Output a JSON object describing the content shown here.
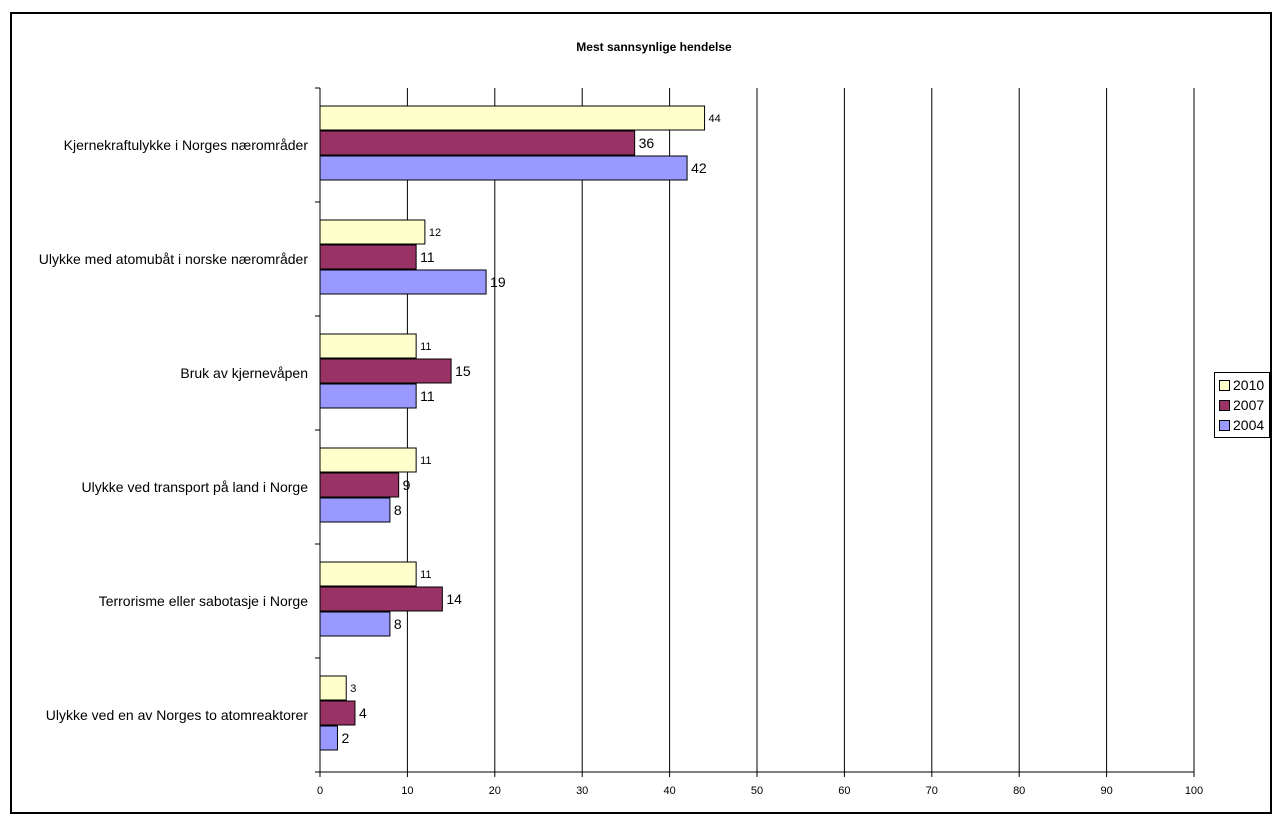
{
  "chart_data": {
    "type": "bar",
    "orientation": "horizontal",
    "title": "Mest sannsynlige hendelse",
    "categories": [
      "Kjernekraftulykke i Norges nærområder",
      "Ulykke med atomubåt i norske nærområder",
      "Bruk av kjernevåpen",
      "Ulykke ved transport på land i Norge",
      "Terrorisme eller sabotasje i Norge",
      "Ulykke ved en av Norges to atomreaktorer"
    ],
    "series": [
      {
        "name": "2010",
        "color": "#ffffcc",
        "values": [
          44,
          12,
          11,
          11,
          11,
          3
        ]
      },
      {
        "name": "2007",
        "color": "#993366",
        "values": [
          36,
          11,
          15,
          9,
          14,
          4
        ]
      },
      {
        "name": "2004",
        "color": "#9999ff",
        "values": [
          42,
          19,
          11,
          8,
          8,
          2
        ]
      }
    ],
    "xlim": [
      0,
      100
    ],
    "xticks": [
      0,
      10,
      20,
      30,
      40,
      50,
      60,
      70,
      80,
      90,
      100
    ],
    "grid": "vertical",
    "legend_position": "right",
    "xlabel": "",
    "ylabel": ""
  }
}
